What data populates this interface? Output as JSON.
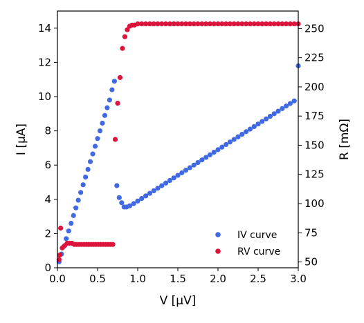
{
  "chart_data": {
    "type": "scatter",
    "xlabel": "V [μV]",
    "ylabel_left": "I [μA]",
    "ylabel_right": "R [mΩ]",
    "xlim": [
      0.0,
      3.0
    ],
    "ylim_left": [
      0,
      15
    ],
    "ylim_right": [
      45,
      265
    ],
    "x_ticks": [
      "0.0",
      "0.5",
      "1.0",
      "1.5",
      "2.0",
      "2.5",
      "3.0"
    ],
    "y_left_ticks": [
      "0",
      "2",
      "4",
      "6",
      "8",
      "10",
      "12",
      "14"
    ],
    "y_right_ticks": [
      "50",
      "75",
      "100",
      "125",
      "150",
      "175",
      "200",
      "225",
      "250"
    ],
    "grid": false,
    "legend_position": "lower-right",
    "series": [
      {
        "name": "IV curve",
        "axis": "left",
        "color": "#4169e1",
        "points": [
          [
            0.02,
            0.35
          ],
          [
            0.05,
            0.8
          ],
          [
            0.08,
            1.25
          ],
          [
            0.11,
            1.7
          ],
          [
            0.14,
            2.15
          ],
          [
            0.17,
            2.6
          ],
          [
            0.2,
            3.05
          ],
          [
            0.23,
            3.5
          ],
          [
            0.26,
            3.95
          ],
          [
            0.29,
            4.4
          ],
          [
            0.32,
            4.85
          ],
          [
            0.35,
            5.3
          ],
          [
            0.38,
            5.75
          ],
          [
            0.41,
            6.2
          ],
          [
            0.44,
            6.65
          ],
          [
            0.47,
            7.1
          ],
          [
            0.5,
            7.55
          ],
          [
            0.53,
            8.0
          ],
          [
            0.56,
            8.45
          ],
          [
            0.59,
            8.9
          ],
          [
            0.62,
            9.35
          ],
          [
            0.65,
            9.8
          ],
          [
            0.68,
            10.4
          ],
          [
            0.71,
            10.9
          ],
          [
            0.74,
            4.8
          ],
          [
            0.77,
            4.1
          ],
          [
            0.8,
            3.8
          ],
          [
            0.83,
            3.55
          ],
          [
            0.86,
            3.55
          ],
          [
            0.9,
            3.62
          ],
          [
            0.95,
            3.75
          ],
          [
            1.0,
            3.9
          ],
          [
            1.05,
            4.05
          ],
          [
            1.1,
            4.2
          ],
          [
            1.15,
            4.35
          ],
          [
            1.2,
            4.5
          ],
          [
            1.25,
            4.65
          ],
          [
            1.3,
            4.8
          ],
          [
            1.35,
            4.95
          ],
          [
            1.4,
            5.1
          ],
          [
            1.45,
            5.25
          ],
          [
            1.5,
            5.4
          ],
          [
            1.55,
            5.55
          ],
          [
            1.6,
            5.7
          ],
          [
            1.65,
            5.85
          ],
          [
            1.7,
            6.0
          ],
          [
            1.75,
            6.15
          ],
          [
            1.8,
            6.3
          ],
          [
            1.85,
            6.45
          ],
          [
            1.9,
            6.6
          ],
          [
            1.95,
            6.75
          ],
          [
            2.0,
            6.9
          ],
          [
            2.05,
            7.05
          ],
          [
            2.1,
            7.2
          ],
          [
            2.15,
            7.35
          ],
          [
            2.2,
            7.5
          ],
          [
            2.25,
            7.65
          ],
          [
            2.3,
            7.8
          ],
          [
            2.35,
            7.95
          ],
          [
            2.4,
            8.1
          ],
          [
            2.45,
            8.25
          ],
          [
            2.5,
            8.4
          ],
          [
            2.55,
            8.55
          ],
          [
            2.6,
            8.7
          ],
          [
            2.65,
            8.85
          ],
          [
            2.7,
            9.0
          ],
          [
            2.75,
            9.15
          ],
          [
            2.8,
            9.3
          ],
          [
            2.85,
            9.45
          ],
          [
            2.9,
            9.6
          ],
          [
            2.95,
            9.75
          ],
          [
            3.0,
            11.8
          ]
        ]
      },
      {
        "name": "RV curve",
        "axis": "right",
        "color": "#dc143c",
        "points": [
          [
            0.02,
            52
          ],
          [
            0.03,
            56
          ],
          [
            0.04,
            79
          ],
          [
            0.06,
            62
          ],
          [
            0.09,
            64
          ],
          [
            0.12,
            66
          ],
          [
            0.15,
            66
          ],
          [
            0.18,
            66
          ],
          [
            0.21,
            65
          ],
          [
            0.24,
            65
          ],
          [
            0.27,
            65
          ],
          [
            0.3,
            65
          ],
          [
            0.33,
            65
          ],
          [
            0.36,
            65
          ],
          [
            0.39,
            65
          ],
          [
            0.42,
            65
          ],
          [
            0.45,
            65
          ],
          [
            0.48,
            65
          ],
          [
            0.51,
            65
          ],
          [
            0.54,
            65
          ],
          [
            0.57,
            65
          ],
          [
            0.6,
            65
          ],
          [
            0.63,
            65
          ],
          [
            0.66,
            65
          ],
          [
            0.69,
            65
          ],
          [
            0.72,
            155
          ],
          [
            0.75,
            186
          ],
          [
            0.78,
            208
          ],
          [
            0.81,
            233
          ],
          [
            0.84,
            243
          ],
          [
            0.87,
            249
          ],
          [
            0.9,
            252
          ],
          [
            0.93,
            253
          ],
          [
            0.96,
            253
          ],
          [
            1.0,
            254
          ],
          [
            1.05,
            254
          ],
          [
            1.1,
            254
          ],
          [
            1.15,
            254
          ],
          [
            1.2,
            254
          ],
          [
            1.25,
            254
          ],
          [
            1.3,
            254
          ],
          [
            1.35,
            254
          ],
          [
            1.4,
            254
          ],
          [
            1.45,
            254
          ],
          [
            1.5,
            254
          ],
          [
            1.55,
            254
          ],
          [
            1.6,
            254
          ],
          [
            1.65,
            254
          ],
          [
            1.7,
            254
          ],
          [
            1.75,
            254
          ],
          [
            1.8,
            254
          ],
          [
            1.85,
            254
          ],
          [
            1.9,
            254
          ],
          [
            1.95,
            254
          ],
          [
            2.0,
            254
          ],
          [
            2.05,
            254
          ],
          [
            2.1,
            254
          ],
          [
            2.15,
            254
          ],
          [
            2.2,
            254
          ],
          [
            2.25,
            254
          ],
          [
            2.3,
            254
          ],
          [
            2.35,
            254
          ],
          [
            2.4,
            254
          ],
          [
            2.45,
            254
          ],
          [
            2.5,
            254
          ],
          [
            2.55,
            254
          ],
          [
            2.6,
            254
          ],
          [
            2.65,
            254
          ],
          [
            2.7,
            254
          ],
          [
            2.75,
            254
          ],
          [
            2.8,
            254
          ],
          [
            2.85,
            254
          ],
          [
            2.9,
            254
          ],
          [
            2.95,
            254
          ],
          [
            3.0,
            254
          ]
        ]
      }
    ]
  }
}
